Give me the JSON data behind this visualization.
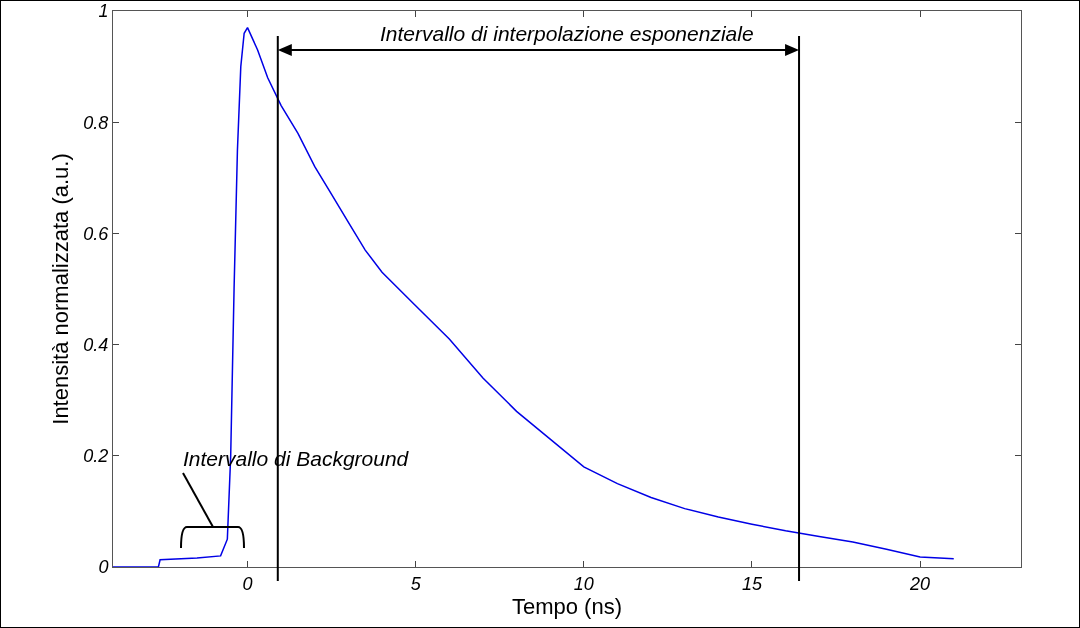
{
  "chart_data": {
    "type": "line",
    "xlabel": "Tempo (ns)",
    "ylabel": "Intensità normalizzata (a.u.)",
    "xlim": [
      -4,
      23
    ],
    "xticks": [
      0,
      5,
      10,
      15,
      20
    ],
    "ylim": [
      0,
      1
    ],
    "yticks": [
      0,
      0.2,
      0.4,
      0.6,
      0.8,
      1
    ],
    "grid": false,
    "marker": "none",
    "line_style": "solid",
    "series": [
      {
        "color": "#0000e6",
        "x": [
          -4,
          -2.65,
          -2.6,
          -1.5,
          -0.8,
          -0.6,
          -0.5,
          -0.4,
          -0.3,
          -0.2,
          -0.1,
          0,
          0.3,
          0.6,
          1,
          1.5,
          2,
          2.5,
          3,
          3.5,
          4,
          5,
          6,
          7,
          8,
          9,
          10,
          11,
          12,
          13,
          14,
          15,
          16,
          17,
          18,
          19,
          20,
          21
        ],
        "values": [
          0,
          0,
          0.013,
          0.016,
          0.02,
          0.05,
          0.2,
          0.5,
          0.75,
          0.9,
          0.96,
          0.97,
          0.93,
          0.88,
          0.83,
          0.78,
          0.72,
          0.67,
          0.62,
          0.57,
          0.53,
          0.47,
          0.41,
          0.34,
          0.28,
          0.23,
          0.18,
          0.15,
          0.125,
          0.105,
          0.09,
          0.077,
          0.065,
          0.055,
          0.045,
          0.032,
          0.018,
          0.015
        ]
      }
    ],
    "ref_lines": [
      {
        "axis": "x",
        "value": 0.9,
        "color": "#000000"
      },
      {
        "axis": "x",
        "value": 16.4,
        "color": "#000000"
      }
    ],
    "annotations": [
      "Intervallo di interpolazione esponenziale",
      "Intervallo di Background"
    ]
  }
}
